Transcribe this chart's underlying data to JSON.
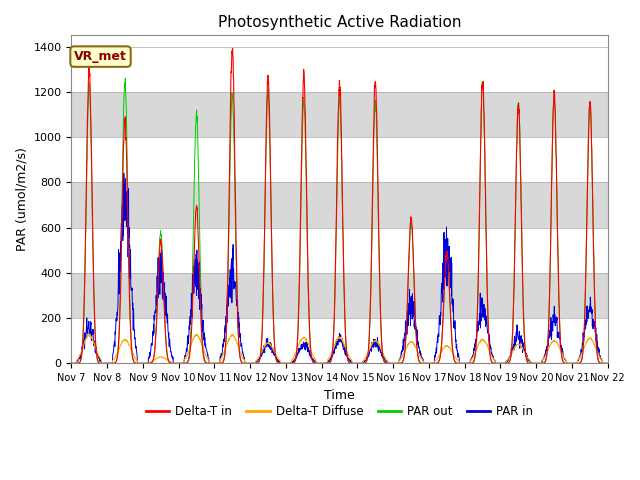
{
  "title": "Photosynthetic Active Radiation",
  "xlabel": "Time",
  "ylabel": "PAR (umol/m2/s)",
  "ylim": [
    0,
    1450
  ],
  "yticks": [
    0,
    200,
    400,
    600,
    800,
    1000,
    1200,
    1400
  ],
  "site_label": "VR_met",
  "legend_labels": [
    "PAR in",
    "PAR out",
    "Delta-T in",
    "Delta-T Diffuse"
  ],
  "line_colors": [
    "#ff0000",
    "#ffa500",
    "#00cc00",
    "#0000dd"
  ],
  "n_days": 15,
  "start_day": 7,
  "daily_peak_par_in": [
    1305,
    1075,
    540,
    690,
    1385,
    1270,
    1260,
    1240,
    1240,
    640,
    490,
    1240,
    1135,
    1190,
    1160
  ],
  "daily_peak_par_out": [
    125,
    105,
    28,
    125,
    125,
    90,
    115,
    115,
    100,
    95,
    78,
    105,
    85,
    100,
    110
  ],
  "daily_peak_green": [
    1230,
    1250,
    580,
    1100,
    1185,
    1200,
    1165,
    1165,
    1155,
    620,
    500,
    1255,
    1155,
    1175,
    1160
  ],
  "daily_peak_blue": [
    160,
    755,
    415,
    415,
    415,
    90,
    85,
    100,
    95,
    250,
    510,
    240,
    125,
    195,
    245
  ]
}
